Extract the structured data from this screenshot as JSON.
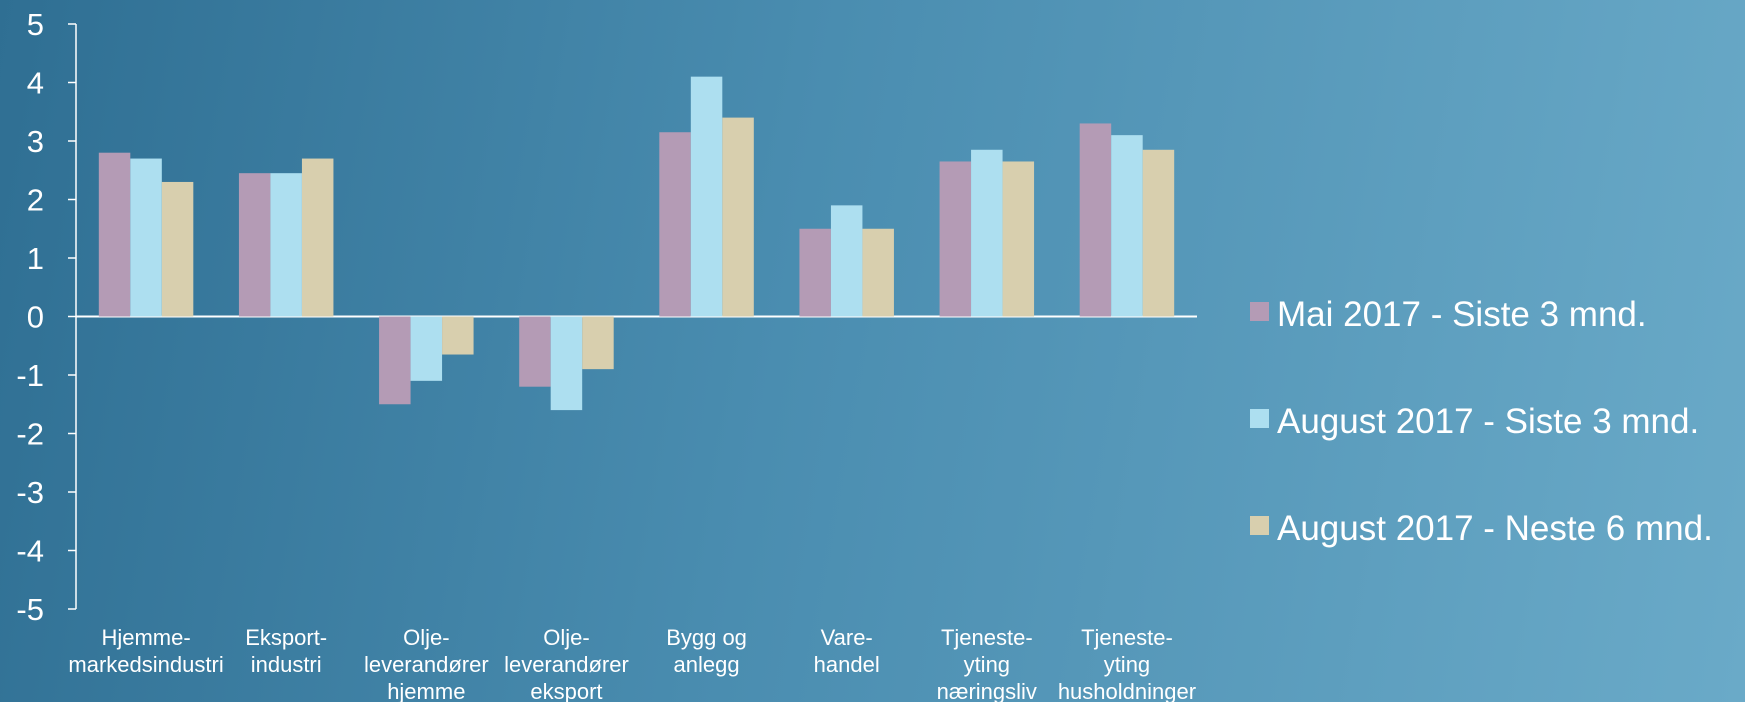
{
  "chart_data": {
    "type": "bar",
    "categories": [
      [
        "Hjemme-",
        "markedsindustri"
      ],
      [
        "Eksport-",
        "industri"
      ],
      [
        "Olje-",
        "leverandører",
        "hjemme"
      ],
      [
        "Olje-",
        "leverandører",
        "eksport"
      ],
      [
        "Bygg og",
        "anlegg"
      ],
      [
        "Vare-",
        "handel"
      ],
      [
        "Tjeneste-",
        "yting",
        "næringsliv"
      ],
      [
        "Tjeneste-",
        "yting",
        "husholdninger"
      ]
    ],
    "series": [
      {
        "name": "Mai 2017 - Siste 3 mnd.",
        "color": "#b49bb5",
        "values": [
          2.8,
          2.45,
          -1.5,
          -1.2,
          3.15,
          1.5,
          2.65,
          3.3
        ]
      },
      {
        "name": "August 2017 - Siste 3 mnd.",
        "color": "#addff0",
        "values": [
          2.7,
          2.45,
          -1.1,
          -1.6,
          4.1,
          1.9,
          2.85,
          3.1
        ]
      },
      {
        "name": "August 2017 - Neste 6 mnd.",
        "color": "#d8cfae",
        "values": [
          2.3,
          2.7,
          -0.65,
          -0.9,
          3.4,
          1.5,
          2.65,
          2.85
        ]
      }
    ],
    "yticks": [
      "5",
      "4",
      "3",
      "2",
      "1",
      "0",
      "-1",
      "-2",
      "-3",
      "-4",
      "-5"
    ],
    "ylim": [
      -5,
      5
    ],
    "title": "",
    "xlabel": "",
    "ylabel": "",
    "grid": false,
    "legend_position": "right"
  }
}
